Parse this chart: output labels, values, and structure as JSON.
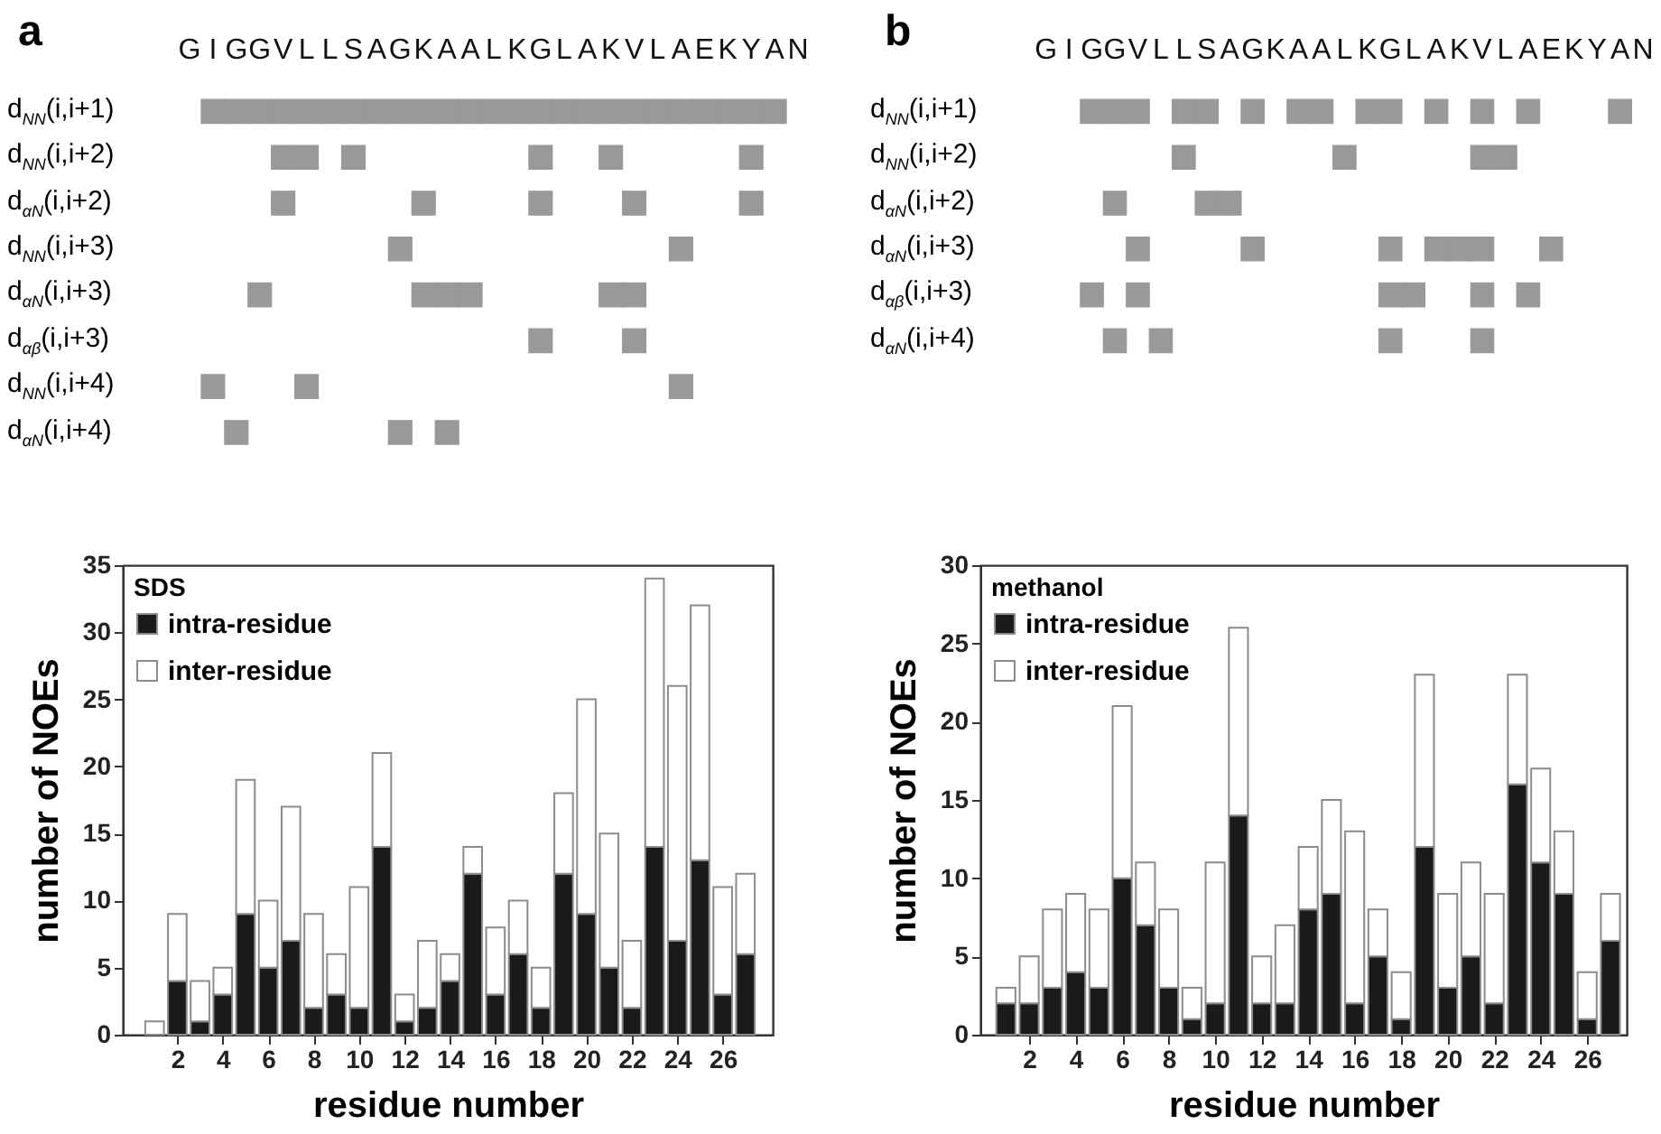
{
  "chart_data": [
    {
      "type": "heatmap",
      "title": "a",
      "color": "#999999",
      "categories": [
        "G",
        "I",
        "G",
        "G",
        "V",
        "L",
        "L",
        "S",
        "A",
        "G",
        "K",
        "A",
        "A",
        "L",
        "K",
        "G",
        "L",
        "A",
        "K",
        "V",
        "L",
        "A",
        "E",
        "K",
        "Y",
        "A",
        "N"
      ],
      "y_categories": [
        "d$_{NN}$(i,i+1)",
        "d$_{NN}$(i,i+2)",
        "d$_{αN}$(i,i+2)",
        "d$_{NN}$(i,i+3)",
        "d$_{αN}$(i,i+3)",
        "d$_{αβ}$(i,i+3)",
        "d$_{NN}$(i,i+4)",
        "d$_{αN}$(i,i+4)"
      ],
      "cells": [
        [
          null,
          true,
          true,
          true,
          true,
          true,
          true,
          true,
          true,
          true,
          true,
          true,
          true,
          true,
          true,
          true,
          true,
          true,
          true,
          true,
          true,
          true,
          true,
          true,
          true,
          true,
          null
        ],
        [
          null,
          null,
          null,
          null,
          true,
          true,
          null,
          true,
          null,
          null,
          null,
          null,
          null,
          null,
          null,
          true,
          null,
          null,
          true,
          null,
          null,
          null,
          null,
          null,
          true,
          null,
          null
        ],
        [
          null,
          null,
          null,
          null,
          true,
          null,
          null,
          null,
          null,
          null,
          true,
          null,
          null,
          null,
          null,
          true,
          null,
          null,
          null,
          true,
          null,
          null,
          null,
          null,
          true,
          null,
          null
        ],
        [
          null,
          null,
          null,
          null,
          null,
          null,
          null,
          null,
          null,
          true,
          null,
          null,
          null,
          null,
          null,
          null,
          null,
          null,
          null,
          null,
          null,
          true,
          null,
          null,
          null,
          null,
          null
        ],
        [
          null,
          null,
          null,
          true,
          null,
          null,
          null,
          null,
          null,
          null,
          true,
          true,
          true,
          null,
          null,
          null,
          null,
          null,
          true,
          true,
          null,
          null,
          null,
          null,
          null,
          null,
          null
        ],
        [
          null,
          null,
          null,
          null,
          null,
          null,
          null,
          null,
          null,
          null,
          null,
          null,
          null,
          null,
          null,
          true,
          null,
          null,
          null,
          true,
          null,
          null,
          null,
          null,
          null,
          null,
          null
        ],
        [
          null,
          true,
          null,
          null,
          null,
          true,
          null,
          null,
          null,
          null,
          null,
          null,
          null,
          null,
          null,
          null,
          null,
          null,
          null,
          null,
          null,
          true,
          null,
          null,
          null,
          null,
          null
        ],
        [
          null,
          null,
          true,
          null,
          null,
          null,
          null,
          null,
          null,
          true,
          null,
          true,
          null,
          null,
          null,
          null,
          null,
          null,
          null,
          null,
          null,
          null,
          null,
          null,
          null,
          null,
          null
        ]
      ]
    },
    {
      "type": "heatmap",
      "title": "b",
      "color": "#999999",
      "categories": [
        "G",
        "I",
        "G",
        "G",
        "V",
        "L",
        "L",
        "S",
        "A",
        "G",
        "K",
        "A",
        "A",
        "L",
        "K",
        "G",
        "L",
        "A",
        "K",
        "V",
        "L",
        "A",
        "E",
        "K",
        "Y",
        "A",
        "N"
      ],
      "y_categories": [
        "d$_{NN}$(i,i+1)",
        "d$_{NN}$(i,i+2)",
        "d$_{αN}$(i,i+2)",
        "d$_{αN}$(i,i+3)",
        "d$_{αβ}$(i,i+3)",
        "d$_{αN}$(i,i+4)"
      ],
      "cells": [
        [
          null,
          null,
          true,
          true,
          true,
          null,
          true,
          true,
          null,
          true,
          null,
          true,
          true,
          null,
          true,
          true,
          null,
          true,
          null,
          true,
          null,
          true,
          null,
          null,
          null,
          true,
          null
        ],
        [
          null,
          null,
          null,
          null,
          null,
          null,
          true,
          null,
          null,
          null,
          null,
          null,
          null,
          true,
          null,
          null,
          null,
          null,
          null,
          true,
          true,
          null,
          null,
          null,
          null,
          null,
          null
        ],
        [
          null,
          null,
          null,
          true,
          null,
          null,
          null,
          true,
          true,
          null,
          null,
          null,
          null,
          null,
          null,
          null,
          null,
          null,
          null,
          null,
          null,
          null,
          null,
          null,
          null,
          null,
          null
        ],
        [
          null,
          null,
          null,
          null,
          true,
          null,
          null,
          null,
          null,
          true,
          null,
          null,
          null,
          null,
          null,
          true,
          null,
          true,
          true,
          true,
          null,
          null,
          true,
          null,
          null,
          null,
          null
        ],
        [
          null,
          null,
          true,
          null,
          true,
          null,
          null,
          null,
          null,
          null,
          null,
          null,
          null,
          null,
          null,
          true,
          true,
          null,
          null,
          true,
          null,
          true,
          null,
          null,
          null,
          null,
          null
        ],
        [
          null,
          null,
          null,
          true,
          null,
          true,
          null,
          null,
          null,
          null,
          null,
          null,
          null,
          null,
          null,
          true,
          null,
          null,
          null,
          true,
          null,
          null,
          null,
          null,
          null,
          null,
          null
        ]
      ]
    },
    {
      "type": "bar",
      "stacked": true,
      "xlabel": "residue number",
      "ylabel": "number of NOEs",
      "legend": "top left",
      "legend_title": "SDS",
      "x": [
        1,
        2,
        3,
        4,
        5,
        6,
        7,
        8,
        9,
        10,
        11,
        12,
        13,
        14,
        15,
        16,
        17,
        18,
        19,
        20,
        21,
        22,
        23,
        24,
        25,
        26,
        27
      ],
      "xlim": [
        -0.4,
        28.2
      ],
      "xticks": [
        2,
        4,
        6,
        8,
        10,
        12,
        14,
        16,
        18,
        20,
        22,
        24,
        26
      ],
      "ylim": [
        0,
        35
      ],
      "yticks": [
        0,
        5,
        10,
        15,
        20,
        25,
        30,
        35
      ],
      "series": [
        {
          "name": "intra-residue",
          "color": "#1a1a1a",
          "values": [
            0,
            4,
            1,
            3,
            9,
            5,
            7,
            2,
            3,
            2,
            14,
            1,
            2,
            4,
            12,
            3,
            6,
            2,
            12,
            9,
            5,
            2,
            14,
            7,
            13,
            3,
            6
          ]
        },
        {
          "name": "inter-residue",
          "color": "#ffffff",
          "values": [
            1,
            5,
            3,
            2,
            10,
            5,
            10,
            7,
            3,
            9,
            7,
            2,
            5,
            2,
            2,
            5,
            4,
            3,
            6,
            16,
            10,
            5,
            20,
            19,
            19,
            8,
            6
          ]
        }
      ]
    },
    {
      "type": "bar",
      "stacked": true,
      "xlabel": "residue number",
      "ylabel": "number of NOEs",
      "legend": "top left",
      "legend_title": "methanol",
      "x": [
        1,
        2,
        3,
        4,
        5,
        6,
        7,
        8,
        9,
        10,
        11,
        12,
        13,
        14,
        15,
        16,
        17,
        18,
        19,
        20,
        21,
        22,
        23,
        24,
        25,
        26,
        27
      ],
      "xlim": [
        -0.1,
        27.7
      ],
      "xticks": [
        2,
        4,
        6,
        8,
        10,
        12,
        14,
        16,
        18,
        20,
        22,
        24,
        26
      ],
      "ylim": [
        0,
        30
      ],
      "yticks": [
        0,
        5,
        10,
        15,
        20,
        25,
        30
      ],
      "series": [
        {
          "name": "intra-residue",
          "color": "#1a1a1a",
          "values": [
            2,
            2,
            3,
            4,
            3,
            10,
            7,
            3,
            1,
            2,
            14,
            2,
            2,
            8,
            9,
            2,
            5,
            1,
            12,
            3,
            5,
            2,
            16,
            11,
            9,
            1,
            6
          ]
        },
        {
          "name": "inter-residue",
          "color": "#ffffff",
          "values": [
            1,
            3,
            5,
            5,
            5,
            11,
            4,
            5,
            2,
            9,
            12,
            3,
            5,
            4,
            6,
            11,
            3,
            3,
            11,
            6,
            6,
            7,
            7,
            6,
            4,
            3,
            3
          ]
        }
      ]
    }
  ]
}
